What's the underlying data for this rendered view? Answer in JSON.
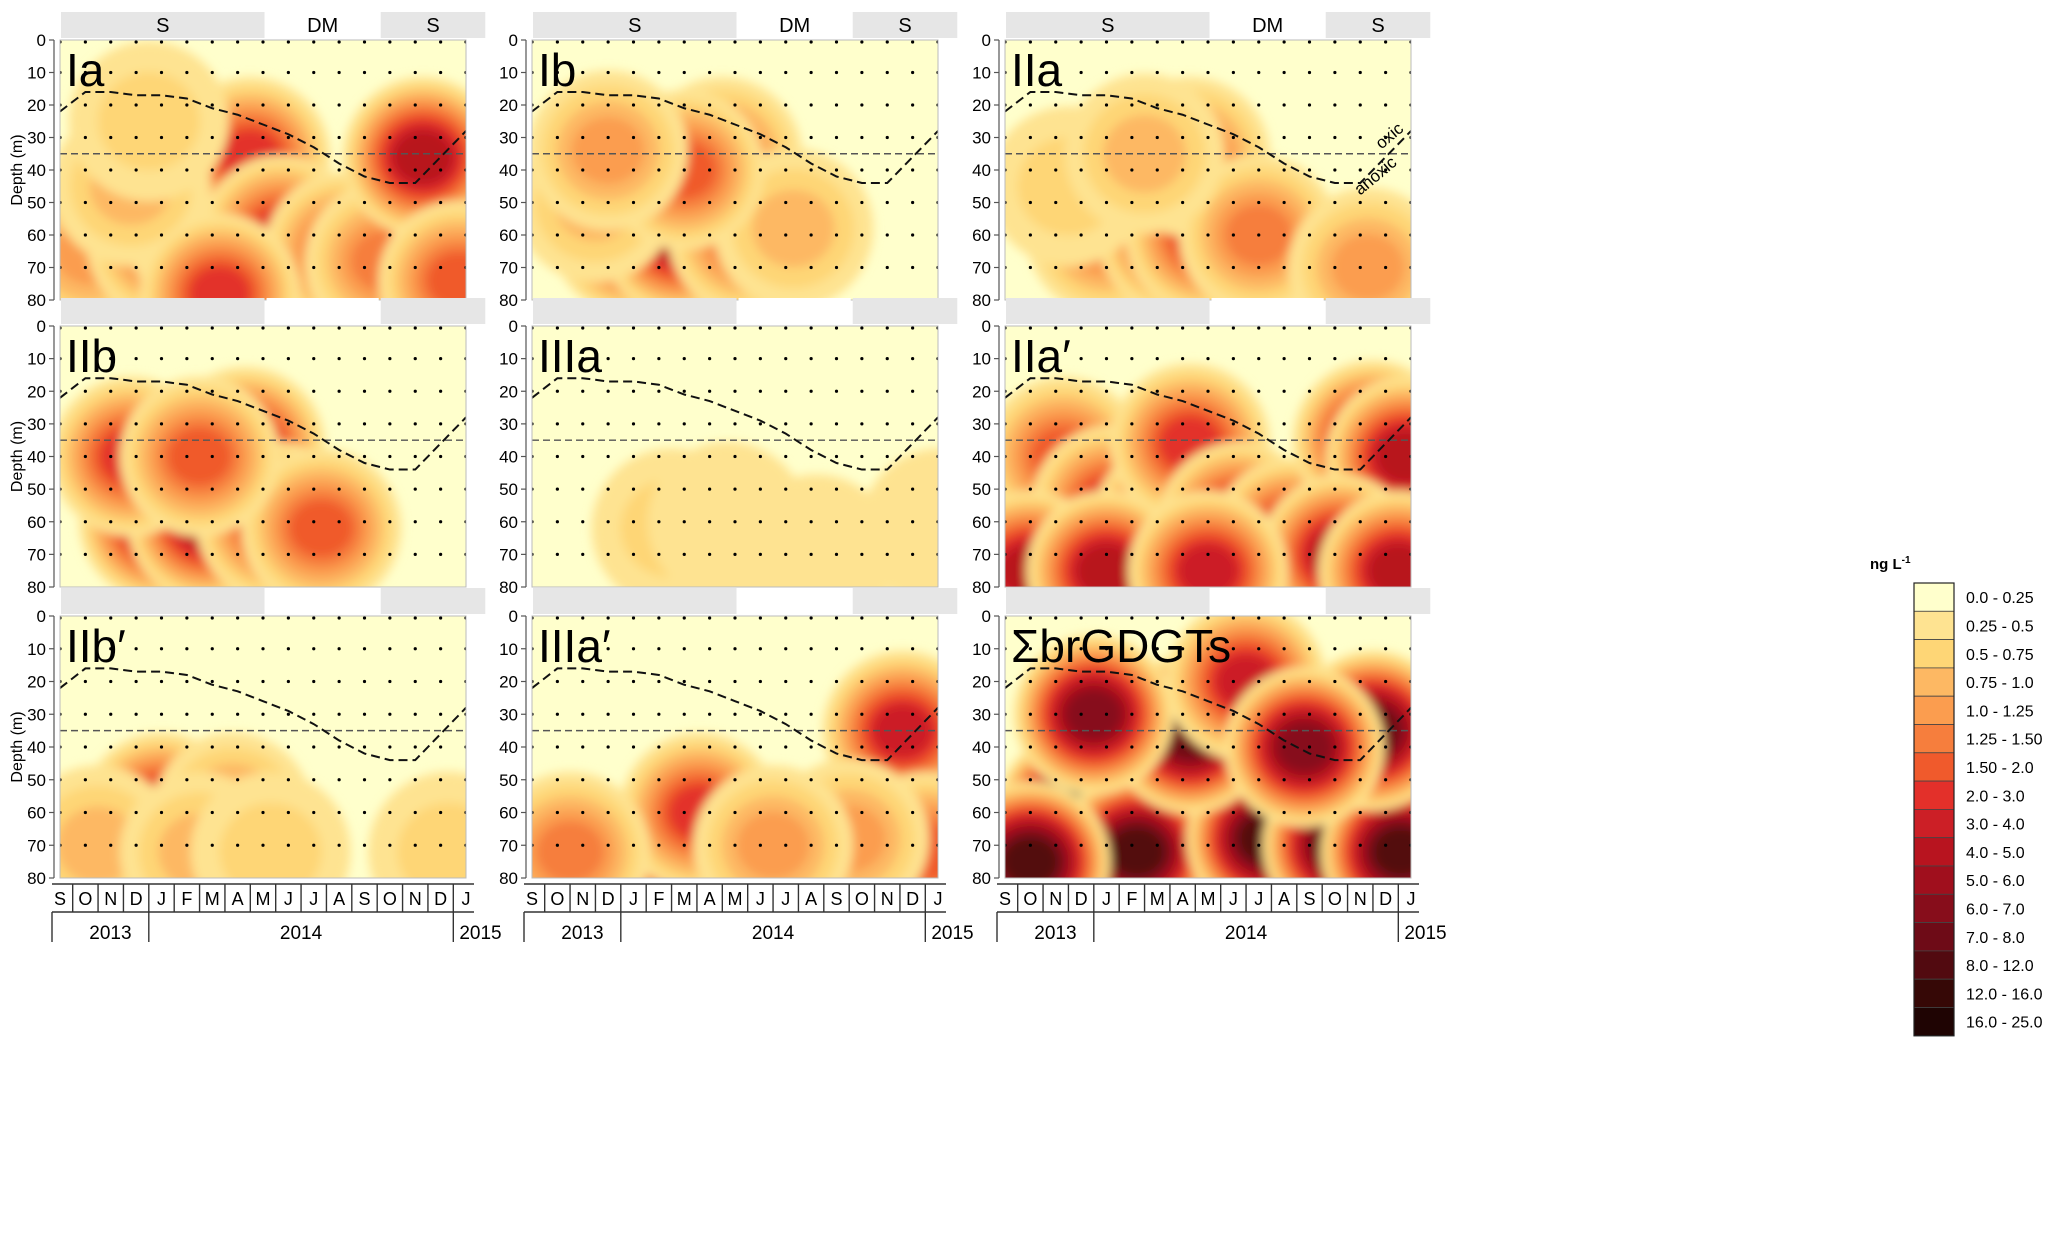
{
  "chart_data": {
    "type": "heatmap",
    "x_months": [
      "S",
      "O",
      "N",
      "D",
      "J",
      "F",
      "M",
      "A",
      "M",
      "J",
      "J",
      "A",
      "S",
      "O",
      "N",
      "D",
      "J"
    ],
    "years": [
      "2013",
      "2014",
      "2015"
    ],
    "y_ticks": [
      "0",
      "10",
      "20",
      "30",
      "40",
      "50",
      "60",
      "70",
      "80"
    ],
    "ylabel": "Depth (m)",
    "ylim": [
      0,
      80
    ],
    "seasons": [
      {
        "label": "S",
        "from": 0,
        "to": 8.1
      },
      {
        "label": "DM",
        "from": 8.1,
        "to": 12.6
      },
      {
        "label": "S",
        "from": 12.6,
        "to": 16.8
      }
    ],
    "oxycline_depth_m": [
      22,
      16,
      16,
      17,
      17,
      18,
      21,
      23,
      26,
      29,
      33,
      38,
      42,
      44,
      44,
      36,
      28
    ],
    "reference_depth_m": 35,
    "annotation_oxic": "oxic",
    "annotation_anoxic": "anoxic",
    "legend": {
      "title": "ng L",
      "title_sup": "-1",
      "classes": [
        {
          "label": "0.0 - 0.25",
          "color": "#ffffcc"
        },
        {
          "label": "0.25 - 0.5",
          "color": "#fee391"
        },
        {
          "label": "0.5 - 0.75",
          "color": "#fed676"
        },
        {
          "label": "0.75 - 1.0",
          "color": "#fdb863"
        },
        {
          "label": "1.0 - 1.25",
          "color": "#fb9d4f"
        },
        {
          "label": "1.25 - 1.50",
          "color": "#f67e3d"
        },
        {
          "label": "1.50 - 2.0",
          "color": "#f05a2c"
        },
        {
          "label": "2.0 - 3.0",
          "color": "#e3302a"
        },
        {
          "label": "3.0 - 4.0",
          "color": "#cc1f26"
        },
        {
          "label": "4.0 - 5.0",
          "color": "#b8141f"
        },
        {
          "label": "5.0 - 6.0",
          "color": "#a00f1d"
        },
        {
          "label": "6.0 - 7.0",
          "color": "#870d1b"
        },
        {
          "label": "7.0 - 8.0",
          "color": "#6e0b17"
        },
        {
          "label": "8.0 - 12.0",
          "color": "#520a10"
        },
        {
          "label": "12.0 - 16.0",
          "color": "#360806"
        },
        {
          "label": "16.0 - 25.0",
          "color": "#1f0403"
        }
      ]
    },
    "panels": [
      {
        "label": "Ia",
        "hotspots": [
          {
            "m": 1.2,
            "d": 65,
            "v": 4
          },
          {
            "m": 4.2,
            "d": 62,
            "v": 6
          },
          {
            "m": 5.8,
            "d": 60,
            "v": 6
          },
          {
            "m": 6.3,
            "d": 45,
            "v": 6
          },
          {
            "m": 7.3,
            "d": 60,
            "v": 8
          },
          {
            "m": 7.5,
            "d": 36,
            "v": 7
          },
          {
            "m": 8.7,
            "d": 60,
            "v": 7
          },
          {
            "m": 11.2,
            "d": 65,
            "v": 6
          },
          {
            "m": 12.8,
            "d": 68,
            "v": 5
          },
          {
            "m": 14.3,
            "d": 36,
            "v": 9
          },
          {
            "m": 15.7,
            "d": 74,
            "v": 6
          },
          {
            "m": 2.8,
            "d": 45,
            "v": 3
          },
          {
            "m": 6.3,
            "d": 78,
            "v": 7
          },
          {
            "m": 3.5,
            "d": 25,
            "v": 2
          }
        ]
      },
      {
        "label": "Ib",
        "hotspots": [
          {
            "m": 3.9,
            "d": 60,
            "v": 8
          },
          {
            "m": 5.8,
            "d": 60,
            "v": 9
          },
          {
            "m": 7.5,
            "d": 36,
            "v": 5
          },
          {
            "m": 8.5,
            "d": 60,
            "v": 6
          },
          {
            "m": 2.5,
            "d": 50,
            "v": 3
          },
          {
            "m": 10.3,
            "d": 58,
            "v": 3
          },
          {
            "m": 6,
            "d": 40,
            "v": 6
          },
          {
            "m": 3,
            "d": 34,
            "v": 4
          }
        ]
      },
      {
        "label": "IIa",
        "hotspots": [
          {
            "m": 4,
            "d": 60,
            "v": 5
          },
          {
            "m": 6.8,
            "d": 60,
            "v": 8
          },
          {
            "m": 7.9,
            "d": 60,
            "v": 7
          },
          {
            "m": 7.3,
            "d": 36,
            "v": 5
          },
          {
            "m": 10,
            "d": 60,
            "v": 5
          },
          {
            "m": 14.3,
            "d": 70,
            "v": 4
          },
          {
            "m": 2.5,
            "d": 45,
            "v": 2
          },
          {
            "m": 5.5,
            "d": 35,
            "v": 3
          }
        ]
      },
      {
        "label": "IIb",
        "hotspots": [
          {
            "m": 3.9,
            "d": 60,
            "v": 9
          },
          {
            "m": 5.8,
            "d": 60,
            "v": 9
          },
          {
            "m": 7.3,
            "d": 37,
            "v": 8
          },
          {
            "m": 8.5,
            "d": 60,
            "v": 7
          },
          {
            "m": 10.3,
            "d": 62,
            "v": 6
          },
          {
            "m": 2.8,
            "d": 40,
            "v": 7
          },
          {
            "m": 5.5,
            "d": 40,
            "v": 6
          }
        ]
      },
      {
        "label": "IIIa",
        "hotspots": [
          {
            "m": 5.5,
            "d": 62,
            "v": 2
          },
          {
            "m": 7.7,
            "d": 60,
            "v": 1
          },
          {
            "m": 11.2,
            "d": 70,
            "v": 1
          },
          {
            "m": 16.1,
            "d": 62,
            "v": 1
          }
        ]
      },
      {
        "label": "IIa′",
        "hotspots": [
          {
            "m": 2.3,
            "d": 40,
            "v": 6
          },
          {
            "m": 4.2,
            "d": 55,
            "v": 7
          },
          {
            "m": 6.6,
            "d": 60,
            "v": 9
          },
          {
            "m": 7.3,
            "d": 36,
            "v": 7
          },
          {
            "m": 9.2,
            "d": 60,
            "v": 8
          },
          {
            "m": 11.3,
            "d": 65,
            "v": 8
          },
          {
            "m": 14.5,
            "d": 35,
            "v": 9
          },
          {
            "m": 15.8,
            "d": 40,
            "v": 9
          },
          {
            "m": 1,
            "d": 75,
            "v": 9
          },
          {
            "m": 4,
            "d": 75,
            "v": 9
          },
          {
            "m": 13.2,
            "d": 70,
            "v": 9
          },
          {
            "m": 15.5,
            "d": 75,
            "v": 9
          },
          {
            "m": 8,
            "d": 75,
            "v": 8
          }
        ]
      },
      {
        "label": "IIb′",
        "hotspots": [
          {
            "m": 4,
            "d": 60,
            "v": 8
          },
          {
            "m": 6.8,
            "d": 60,
            "v": 4
          },
          {
            "m": 1.5,
            "d": 70,
            "v": 3
          },
          {
            "m": 5.5,
            "d": 72,
            "v": 3
          },
          {
            "m": 8.3,
            "d": 72,
            "v": 2
          },
          {
            "m": 15.3,
            "d": 72,
            "v": 2
          }
        ]
      },
      {
        "label": "IIIa′",
        "hotspots": [
          {
            "m": 5.9,
            "d": 75,
            "v": 6
          },
          {
            "m": 6.6,
            "d": 60,
            "v": 7
          },
          {
            "m": 1.5,
            "d": 72,
            "v": 5
          },
          {
            "m": 14.6,
            "d": 35,
            "v": 8
          },
          {
            "m": 15.5,
            "d": 72,
            "v": 6
          },
          {
            "m": 12.5,
            "d": 68,
            "v": 4
          },
          {
            "m": 9.5,
            "d": 70,
            "v": 4
          }
        ]
      },
      {
        "label": "ΣbrGDGTs",
        "hotspots": [
          {
            "m": 2.8,
            "d": 60,
            "v": 14
          },
          {
            "m": 6.5,
            "d": 60,
            "v": 15
          },
          {
            "m": 7.8,
            "d": 60,
            "v": 13
          },
          {
            "m": 5.2,
            "d": 72,
            "v": 13
          },
          {
            "m": 10.3,
            "d": 68,
            "v": 13
          },
          {
            "m": 13.3,
            "d": 70,
            "v": 13
          },
          {
            "m": 1,
            "d": 75,
            "v": 13
          },
          {
            "m": 15.6,
            "d": 72,
            "v": 13
          },
          {
            "m": 7.3,
            "d": 36,
            "v": 12
          },
          {
            "m": 14.5,
            "d": 35,
            "v": 12
          },
          {
            "m": 3.5,
            "d": 30,
            "v": 11
          },
          {
            "m": 9.5,
            "d": 20,
            "v": 8
          },
          {
            "m": 11.8,
            "d": 40,
            "v": 11
          }
        ]
      }
    ]
  }
}
